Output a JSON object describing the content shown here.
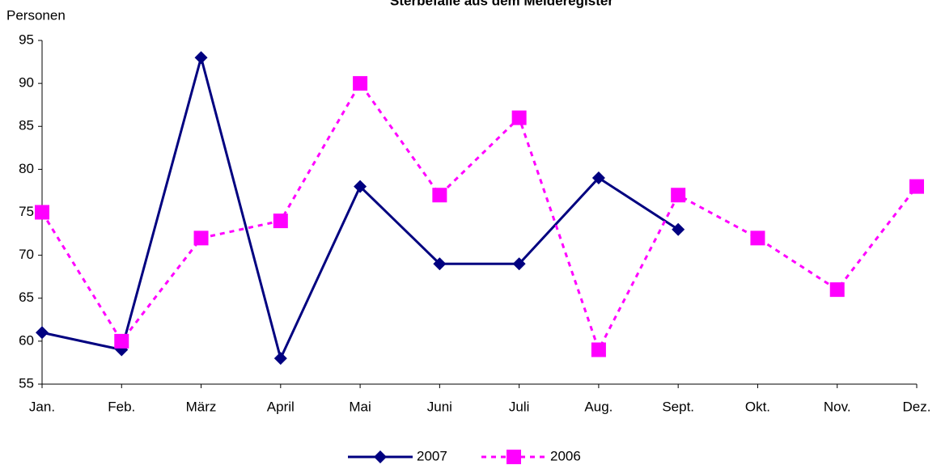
{
  "chart_data": {
    "type": "line",
    "title": "Sterbefälle aus dem Melderegister",
    "y_label": "Personen",
    "categories": [
      "Jan.",
      "Feb.",
      "März",
      "April",
      "Mai",
      "Juni",
      "Juli",
      "Aug.",
      "Sept.",
      "Okt.",
      "Nov.",
      "Dez."
    ],
    "series": [
      {
        "name": "2007",
        "color": "#000080",
        "marker": "diamond",
        "dash": false,
        "values": [
          61,
          59,
          93,
          58,
          78,
          69,
          69,
          79,
          73,
          null,
          null,
          null
        ]
      },
      {
        "name": "2006",
        "color": "#ff00ff",
        "marker": "square",
        "dash": true,
        "values": [
          75,
          60,
          72,
          74,
          90,
          77,
          86,
          59,
          77,
          72,
          66,
          78
        ]
      }
    ],
    "ylim": [
      55,
      95
    ],
    "yticks": [
      55,
      60,
      65,
      70,
      75,
      80,
      85,
      90,
      95
    ],
    "grid": false,
    "legend": "bottom"
  }
}
